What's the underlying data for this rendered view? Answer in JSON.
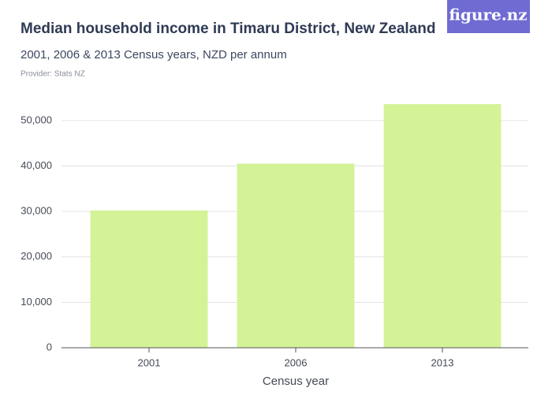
{
  "logo": "figure.nz",
  "chart_data": {
    "type": "bar",
    "title": "Median household income in Timaru District, New Zealand",
    "subtitle": "2001, 2006 & 2013 Census years, NZD per annum",
    "provider": "Provider: Stats NZ",
    "x_label": "Census year",
    "categories": [
      "2001",
      "2006",
      "2013"
    ],
    "values": [
      30200,
      40500,
      53600
    ],
    "color": "#d4f296",
    "ylim": [
      0,
      55000
    ],
    "yticks": [
      0,
      {
        "value": 10000,
        "label": "10,000"
      },
      {
        "value": 20000,
        "label": "20,000"
      },
      {
        "value": 30000,
        "label": "30,000"
      },
      {
        "value": 40000,
        "label": "40,000"
      },
      {
        "value": 50000,
        "label": "50,000"
      }
    ],
    "grid": true
  }
}
